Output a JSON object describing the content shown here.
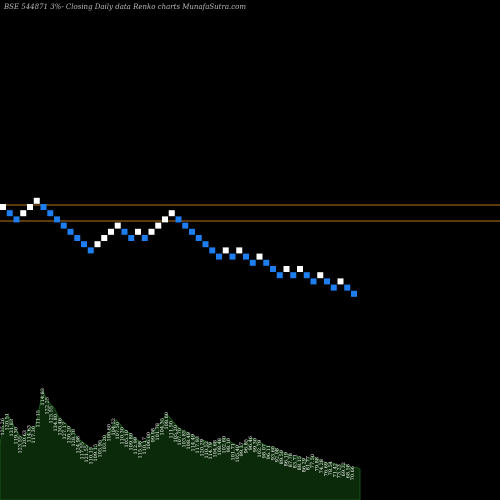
{
  "header": {
    "caption": "BSE 544871 3%-  Closing Daily data  Renko  charts MunafaSutra.com"
  },
  "colors": {
    "background": "#000000",
    "up_brick": "#ffffff",
    "down_brick": "#1e7ef0",
    "ref_line": "#b8741e",
    "volume_fill": "#0a2a0a",
    "volume_stroke": "#1f5f1f"
  },
  "chart_data": {
    "type": "renko",
    "bricks": [
      {
        "d": "up",
        "lvl": 0
      },
      {
        "d": "down",
        "lvl": -1
      },
      {
        "d": "down",
        "lvl": -2
      },
      {
        "d": "up",
        "lvl": -1
      },
      {
        "d": "up",
        "lvl": 0
      },
      {
        "d": "up",
        "lvl": 1
      },
      {
        "d": "down",
        "lvl": 0
      },
      {
        "d": "down",
        "lvl": -1
      },
      {
        "d": "down",
        "lvl": -2
      },
      {
        "d": "down",
        "lvl": -3
      },
      {
        "d": "down",
        "lvl": -4
      },
      {
        "d": "down",
        "lvl": -5
      },
      {
        "d": "down",
        "lvl": -6
      },
      {
        "d": "down",
        "lvl": -7
      },
      {
        "d": "up",
        "lvl": -6
      },
      {
        "d": "up",
        "lvl": -5
      },
      {
        "d": "up",
        "lvl": -4
      },
      {
        "d": "up",
        "lvl": -3
      },
      {
        "d": "down",
        "lvl": -4
      },
      {
        "d": "down",
        "lvl": -5
      },
      {
        "d": "up",
        "lvl": -4
      },
      {
        "d": "down",
        "lvl": -5
      },
      {
        "d": "up",
        "lvl": -4
      },
      {
        "d": "up",
        "lvl": -3
      },
      {
        "d": "up",
        "lvl": -2
      },
      {
        "d": "up",
        "lvl": -1
      },
      {
        "d": "down",
        "lvl": -2
      },
      {
        "d": "down",
        "lvl": -3
      },
      {
        "d": "down",
        "lvl": -4
      },
      {
        "d": "down",
        "lvl": -5
      },
      {
        "d": "down",
        "lvl": -6
      },
      {
        "d": "down",
        "lvl": -7
      },
      {
        "d": "down",
        "lvl": -8
      },
      {
        "d": "up",
        "lvl": -7
      },
      {
        "d": "down",
        "lvl": -8
      },
      {
        "d": "up",
        "lvl": -7
      },
      {
        "d": "down",
        "lvl": -8
      },
      {
        "d": "down",
        "lvl": -9
      },
      {
        "d": "up",
        "lvl": -8
      },
      {
        "d": "down",
        "lvl": -9
      },
      {
        "d": "down",
        "lvl": -10
      },
      {
        "d": "down",
        "lvl": -11
      },
      {
        "d": "up",
        "lvl": -10
      },
      {
        "d": "down",
        "lvl": -11
      },
      {
        "d": "up",
        "lvl": -10
      },
      {
        "d": "down",
        "lvl": -11
      },
      {
        "d": "down",
        "lvl": -12
      },
      {
        "d": "up",
        "lvl": -11
      },
      {
        "d": "down",
        "lvl": -12
      },
      {
        "d": "down",
        "lvl": -13
      },
      {
        "d": "up",
        "lvl": -12
      },
      {
        "d": "down",
        "lvl": -13
      },
      {
        "d": "down",
        "lvl": -14
      }
    ],
    "reference_lines": [
      205,
      221
    ],
    "volume": [
      34,
      58,
      63,
      57,
      49,
      43,
      40,
      46,
      51,
      50,
      66,
      88,
      79,
      74,
      70,
      62,
      58,
      54,
      50,
      47,
      40,
      37,
      34,
      31,
      29,
      32,
      36,
      41,
      45,
      52,
      58,
      54,
      49,
      46,
      43,
      39,
      37,
      35,
      39,
      44,
      48,
      53,
      58,
      64,
      60,
      55,
      51,
      48,
      46,
      44,
      42,
      40,
      38,
      37,
      35,
      34,
      36,
      38,
      40,
      38,
      35,
      33,
      31,
      34,
      37,
      40,
      38,
      36,
      34,
      32,
      31,
      30,
      28,
      26,
      24,
      23,
      21,
      22,
      20,
      18,
      20,
      22,
      19,
      17,
      16,
      14,
      15,
      13,
      12,
      14,
      12,
      10,
      11,
      9
    ],
    "volume_labels": [
      "125.26",
      "120.51",
      "131.83",
      "119.30",
      "123.55",
      "120.63",
      "114.63",
      "117.30",
      "111.15",
      "114.83",
      "122.25",
      "125.55",
      "134.80",
      "130.46",
      "127.17",
      "130.20",
      "128.70",
      "124.98",
      "117.55",
      "121.55",
      "110.15",
      "109.15",
      "105.95",
      "103.20",
      "100.60",
      "104.52",
      "107.50",
      "110.30",
      "105.10",
      "109.80",
      "112.99",
      "115.98",
      "110.17",
      "106.00",
      "99.08",
      "101.78",
      "104.35",
      "108.60",
      "111.50",
      "105.20",
      "107.70",
      "103.85",
      "108.49",
      "114.49",
      "117.93",
      "120.29",
      "110.52",
      "114.79",
      "104.68",
      "108.48",
      "102.60",
      "98.10",
      "101.71",
      "105.40",
      "99.37",
      "96.85",
      "96.46",
      "99.30",
      "102.79",
      "98.07",
      "96.11",
      "93.60",
      "92.08",
      "89.50",
      "86.19",
      "87.78",
      "83.71",
      "88.15",
      "86.29",
      "81.77",
      "77.50",
      "79.88",
      "74.28",
      "76.69",
      "78.54",
      "71.42",
      "73.23",
      "69.32",
      "68.58",
      "70.66"
    ]
  }
}
